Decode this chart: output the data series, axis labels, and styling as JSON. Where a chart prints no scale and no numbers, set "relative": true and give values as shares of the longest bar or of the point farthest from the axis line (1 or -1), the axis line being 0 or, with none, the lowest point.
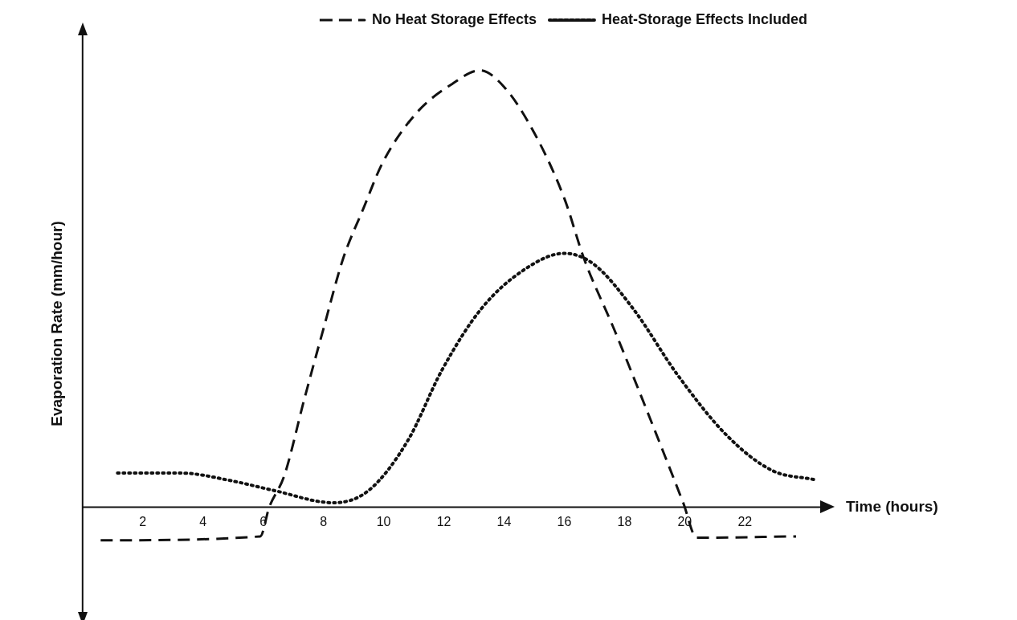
{
  "chart_data": {
    "type": "line",
    "xlabel": "Time (hours)",
    "ylabel": "Evaporation Rate (mm/hour)",
    "relative": true,
    "xlim": [
      0,
      24.5
    ],
    "xticks": [
      2,
      4,
      6,
      8,
      10,
      12,
      14,
      16,
      18,
      20,
      22
    ],
    "grid": false,
    "legend": "top right",
    "marker": "none",
    "series": [
      {
        "name": "No Heat Storage Effects",
        "color": "#111111",
        "line_style": "dashed",
        "x": [
          0.6,
          5.9,
          6.2,
          6.7,
          7.36,
          8.0,
          8.65,
          9.33,
          9.97,
          11.1,
          12.26,
          13.2,
          14.0,
          15.0,
          16.0,
          16.66,
          17.65,
          18.6,
          19.4,
          19.95,
          20.4,
          23.7
        ],
        "values": [
          -0.076,
          -0.067,
          0,
          0.072,
          0.246,
          0.408,
          0.568,
          0.684,
          0.789,
          0.903,
          0.968,
          1,
          0.962,
          0.857,
          0.707,
          0.568,
          0.408,
          0.246,
          0.107,
          0.01,
          -0.07,
          -0.067
        ]
      },
      {
        "name": "Heat-Storage Effects Included",
        "color": "#111111",
        "line_style": "dotted",
        "x": [
          1.16,
          3.26,
          4.9,
          6.36,
          8.33,
          9.5,
          10.8,
          11.94,
          13.23,
          14.7,
          16.0,
          16.98,
          18.3,
          19.76,
          21.4,
          22.9,
          24.3
        ],
        "values": [
          0.078,
          0.078,
          0.061,
          0.038,
          0.01,
          0.038,
          0.152,
          0.314,
          0.453,
          0.545,
          0.581,
          0.556,
          0.453,
          0.303,
          0.164,
          0.084,
          0.063
        ]
      }
    ]
  }
}
